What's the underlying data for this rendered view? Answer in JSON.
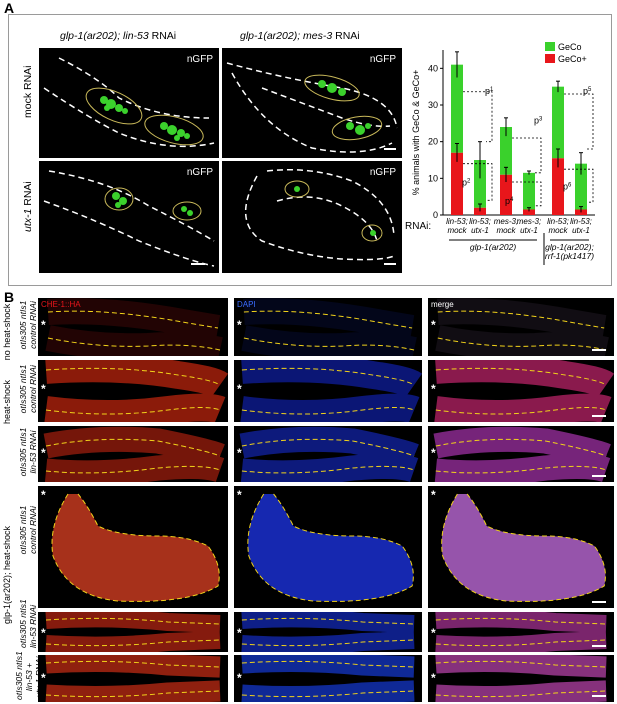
{
  "panel_a": {
    "letter": "A",
    "col1_title_genotype": "glp-1(ar202); lin-53",
    "col1_title_suffix": " RNAi",
    "col2_title_genotype": "glp-1(ar202); mes-3",
    "col2_title_suffix": " RNAi",
    "row1_label": "mock RNAi",
    "row2_gene": "utx-1",
    "row2_suffix": " RNAi",
    "channel_label": "nGFP"
  },
  "chart_data": {
    "type": "bar",
    "stacked": true,
    "ylabel": "% animals with GeCo & GeCo+",
    "ylim": [
      0,
      45
    ],
    "yticks": [
      0,
      10,
      20,
      30,
      40
    ],
    "categories": [
      "lin-53; mock",
      "lin-53; utx-1",
      "mes-3; mock",
      "mes-3; utx-1",
      "lin-53; mock",
      "lin-53; utx-1"
    ],
    "category_lines": [
      [
        "lin-53;",
        "mock"
      ],
      [
        "lin-53;",
        "utx-1"
      ],
      [
        "mes-3;",
        "mock"
      ],
      [
        "mes-3;",
        "utx-1"
      ],
      [
        "lin-53;",
        "mock"
      ],
      [
        "lin-53;",
        "utx-1"
      ]
    ],
    "series": [
      {
        "name": "GeCo+",
        "color": "#e8161b",
        "values": [
          17,
          2,
          11,
          1.5,
          15.5,
          1.5
        ],
        "errors": [
          2.5,
          1,
          2,
          0.5,
          2.5,
          0.8
        ]
      },
      {
        "name": "GeCo",
        "color": "#3ad12c",
        "values": [
          24,
          13,
          13,
          10,
          19.5,
          12.5
        ],
        "errors": [
          3.5,
          5,
          2.5,
          0.5,
          1.5,
          3
        ]
      }
    ],
    "legend_position": "top-right",
    "x_prefix": "RNAi:",
    "groups": [
      {
        "label": "glp-1(ar202)",
        "span": [
          0,
          3
        ]
      },
      {
        "label_line1": "glp-1(ar202);",
        "label_line2": "rrf-1(pk1417)",
        "span": [
          4,
          5
        ]
      }
    ],
    "p_labels": [
      "p",
      "p",
      "p",
      "p",
      "p",
      "p"
    ],
    "p_superscripts": [
      "1",
      "2",
      "3",
      "4",
      "5",
      "6"
    ]
  },
  "panel_b": {
    "letter": "B",
    "channels": [
      "CHE-1::HA",
      "DAPI",
      "merge"
    ],
    "channel_colors": [
      "#e8161b",
      "#3a6cff",
      "#ffffff"
    ],
    "condition_labels": [
      "no heat-shock",
      "heat-shock",
      "glp-1(ar202); heat-shock"
    ],
    "row_labels": [
      {
        "line1": "otIs305 ntIs1",
        "line2": "control RNAi"
      },
      {
        "line1": "otIs305 ntIs1",
        "line2": "control RNAi"
      },
      {
        "line1": "otIs305 ntIs1",
        "line2": "lin-53 RNAi"
      },
      {
        "line1": "otIs305 ntIs1",
        "line2": "control RNAi"
      },
      {
        "line1": "otIs305 ntIs1",
        "line2": "lin-53 RNAi"
      },
      {
        "line1": "otIs305 ntIs1",
        "line2": "lin-53 +",
        "line3": "utx-1 RNAi"
      }
    ],
    "asterisk": "*"
  }
}
